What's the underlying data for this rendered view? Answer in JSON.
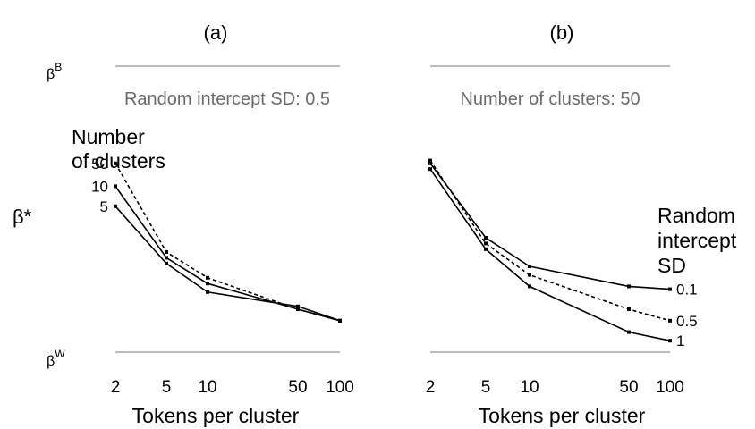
{
  "figure": {
    "y_labels": {
      "top_base": "β",
      "top_sup": "B",
      "middle": "β*",
      "bottom_base": "β",
      "bottom_sup": "W"
    },
    "x_label": "Tokens per cluster",
    "x_ticks": [
      "2",
      "5",
      "10",
      "50",
      "100"
    ]
  },
  "chart_data": [
    {
      "type": "line",
      "panel_label": "(a)",
      "subtitle": "Random intercept SD: 0.5",
      "xlabel": "Tokens per cluster",
      "x_scale": "categorical",
      "x": [
        "2",
        "5",
        "10",
        "50",
        "100"
      ],
      "ylim": [
        0,
        1
      ],
      "y_axis_marks": [
        "βW",
        "β*",
        "βB"
      ],
      "legend_title": [
        "Number",
        "of clusters"
      ],
      "legend_placement": "left of lines",
      "series": [
        {
          "name": "50",
          "style": "dashed",
          "values": [
            0.66,
            0.35,
            0.26,
            0.15,
            0.11
          ]
        },
        {
          "name": "10",
          "style": "solid",
          "values": [
            0.58,
            0.33,
            0.24,
            0.15,
            0.11
          ]
        },
        {
          "name": "5",
          "style": "solid",
          "values": [
            0.51,
            0.31,
            0.21,
            0.16,
            0.11
          ]
        }
      ]
    },
    {
      "type": "line",
      "panel_label": "(b)",
      "subtitle": "Number of clusters: 50",
      "xlabel": "Tokens per cluster",
      "x_scale": "categorical",
      "x": [
        "2",
        "5",
        "10",
        "50",
        "100"
      ],
      "ylim": [
        0,
        1
      ],
      "y_axis_marks": [
        "βW",
        "β*",
        "βB"
      ],
      "legend_title": [
        "Random",
        "intercept",
        "SD"
      ],
      "legend_placement": "right of lines",
      "series": [
        {
          "name": "0.1",
          "style": "solid",
          "values": [
            0.66,
            0.4,
            0.3,
            0.23,
            0.22
          ]
        },
        {
          "name": "0.5",
          "style": "dashed",
          "values": [
            0.67,
            0.38,
            0.27,
            0.15,
            0.11
          ]
        },
        {
          "name": "1",
          "style": "solid",
          "values": [
            0.64,
            0.36,
            0.23,
            0.07,
            0.04
          ]
        }
      ]
    }
  ]
}
